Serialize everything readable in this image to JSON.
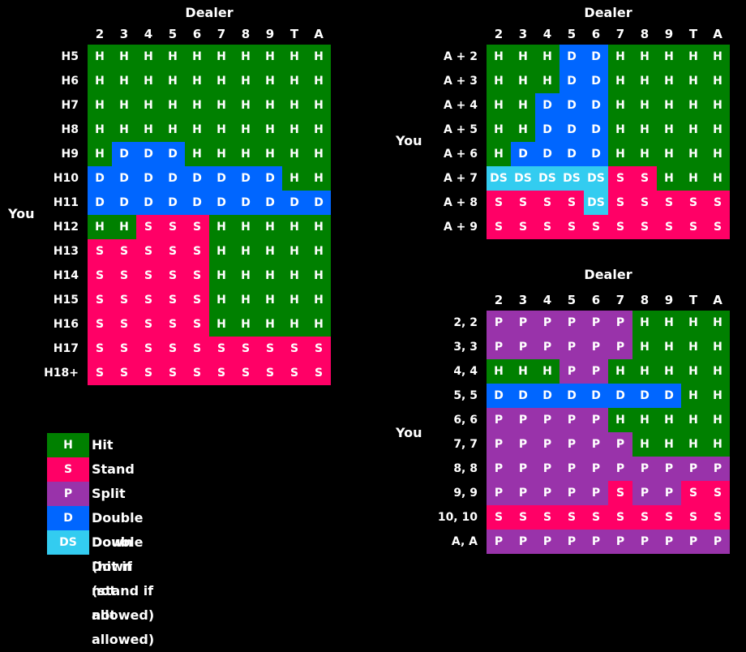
{
  "colors": {
    "H": "#008000",
    "S": "#ff0066",
    "P": "#9933aa",
    "D": "#0066ff",
    "DS": "#33ccf0"
  },
  "dealer_cards": [
    "2",
    "3",
    "4",
    "5",
    "6",
    "7",
    "8",
    "9",
    "T",
    "A"
  ],
  "charts": [
    {
      "id": "hard",
      "dealer_label": "Dealer",
      "you_label": "You",
      "rows": [
        {
          "label": "H5",
          "cells": [
            "H",
            "H",
            "H",
            "H",
            "H",
            "H",
            "H",
            "H",
            "H",
            "H"
          ]
        },
        {
          "label": "H6",
          "cells": [
            "H",
            "H",
            "H",
            "H",
            "H",
            "H",
            "H",
            "H",
            "H",
            "H"
          ]
        },
        {
          "label": "H7",
          "cells": [
            "H",
            "H",
            "H",
            "H",
            "H",
            "H",
            "H",
            "H",
            "H",
            "H"
          ]
        },
        {
          "label": "H8",
          "cells": [
            "H",
            "H",
            "H",
            "H",
            "H",
            "H",
            "H",
            "H",
            "H",
            "H"
          ]
        },
        {
          "label": "H9",
          "cells": [
            "H",
            "D",
            "D",
            "D",
            "H",
            "H",
            "H",
            "H",
            "H",
            "H"
          ]
        },
        {
          "label": "H10",
          "cells": [
            "D",
            "D",
            "D",
            "D",
            "D",
            "D",
            "D",
            "D",
            "H",
            "H"
          ]
        },
        {
          "label": "H11",
          "cells": [
            "D",
            "D",
            "D",
            "D",
            "D",
            "D",
            "D",
            "D",
            "D",
            "D"
          ]
        },
        {
          "label": "H12",
          "cells": [
            "H",
            "H",
            "S",
            "S",
            "S",
            "H",
            "H",
            "H",
            "H",
            "H"
          ]
        },
        {
          "label": "H13",
          "cells": [
            "S",
            "S",
            "S",
            "S",
            "S",
            "H",
            "H",
            "H",
            "H",
            "H"
          ]
        },
        {
          "label": "H14",
          "cells": [
            "S",
            "S",
            "S",
            "S",
            "S",
            "H",
            "H",
            "H",
            "H",
            "H"
          ]
        },
        {
          "label": "H15",
          "cells": [
            "S",
            "S",
            "S",
            "S",
            "S",
            "H",
            "H",
            "H",
            "H",
            "H"
          ]
        },
        {
          "label": "H16",
          "cells": [
            "S",
            "S",
            "S",
            "S",
            "S",
            "H",
            "H",
            "H",
            "H",
            "H"
          ]
        },
        {
          "label": "H17",
          "cells": [
            "S",
            "S",
            "S",
            "S",
            "S",
            "S",
            "S",
            "S",
            "S",
            "S"
          ]
        },
        {
          "label": "H18+",
          "cells": [
            "S",
            "S",
            "S",
            "S",
            "S",
            "S",
            "S",
            "S",
            "S",
            "S"
          ]
        }
      ]
    },
    {
      "id": "soft",
      "dealer_label": "Dealer",
      "you_label": "You",
      "rows": [
        {
          "label": "A + 2",
          "cells": [
            "H",
            "H",
            "H",
            "D",
            "D",
            "H",
            "H",
            "H",
            "H",
            "H"
          ]
        },
        {
          "label": "A + 3",
          "cells": [
            "H",
            "H",
            "H",
            "D",
            "D",
            "H",
            "H",
            "H",
            "H",
            "H"
          ]
        },
        {
          "label": "A + 4",
          "cells": [
            "H",
            "H",
            "D",
            "D",
            "D",
            "H",
            "H",
            "H",
            "H",
            "H"
          ]
        },
        {
          "label": "A + 5",
          "cells": [
            "H",
            "H",
            "D",
            "D",
            "D",
            "H",
            "H",
            "H",
            "H",
            "H"
          ]
        },
        {
          "label": "A + 6",
          "cells": [
            "H",
            "D",
            "D",
            "D",
            "D",
            "H",
            "H",
            "H",
            "H",
            "H"
          ]
        },
        {
          "label": "A + 7",
          "cells": [
            "DS",
            "DS",
            "DS",
            "DS",
            "DS",
            "S",
            "S",
            "H",
            "H",
            "H"
          ]
        },
        {
          "label": "A + 8",
          "cells": [
            "S",
            "S",
            "S",
            "S",
            "DS",
            "S",
            "S",
            "S",
            "S",
            "S"
          ]
        },
        {
          "label": "A + 9",
          "cells": [
            "S",
            "S",
            "S",
            "S",
            "S",
            "S",
            "S",
            "S",
            "S",
            "S"
          ]
        }
      ]
    },
    {
      "id": "pairs",
      "dealer_label": "Dealer",
      "you_label": "You",
      "rows": [
        {
          "label": "2, 2",
          "cells": [
            "P",
            "P",
            "P",
            "P",
            "P",
            "P",
            "H",
            "H",
            "H",
            "H"
          ]
        },
        {
          "label": "3, 3",
          "cells": [
            "P",
            "P",
            "P",
            "P",
            "P",
            "P",
            "H",
            "H",
            "H",
            "H"
          ]
        },
        {
          "label": "4, 4",
          "cells": [
            "H",
            "H",
            "H",
            "P",
            "P",
            "H",
            "H",
            "H",
            "H",
            "H"
          ]
        },
        {
          "label": "5, 5",
          "cells": [
            "D",
            "D",
            "D",
            "D",
            "D",
            "D",
            "D",
            "D",
            "H",
            "H"
          ]
        },
        {
          "label": "6, 6",
          "cells": [
            "P",
            "P",
            "P",
            "P",
            "P",
            "H",
            "H",
            "H",
            "H",
            "H"
          ]
        },
        {
          "label": "7, 7",
          "cells": [
            "P",
            "P",
            "P",
            "P",
            "P",
            "P",
            "H",
            "H",
            "H",
            "H"
          ]
        },
        {
          "label": "8, 8",
          "cells": [
            "P",
            "P",
            "P",
            "P",
            "P",
            "P",
            "P",
            "P",
            "P",
            "P"
          ]
        },
        {
          "label": "9, 9",
          "cells": [
            "P",
            "P",
            "P",
            "P",
            "P",
            "S",
            "P",
            "P",
            "S",
            "S"
          ]
        },
        {
          "label": "10, 10",
          "cells": [
            "S",
            "S",
            "S",
            "S",
            "S",
            "S",
            "S",
            "S",
            "S",
            "S"
          ]
        },
        {
          "label": "A, A",
          "cells": [
            "P",
            "P",
            "P",
            "P",
            "P",
            "P",
            "P",
            "P",
            "P",
            "P"
          ]
        }
      ]
    }
  ],
  "legend": [
    {
      "code": "H",
      "text": "Hit"
    },
    {
      "code": "S",
      "text": "Stand"
    },
    {
      "code": "P",
      "text": "Split"
    },
    {
      "code": "D",
      "text": "Double Down (hit if not allowed)"
    },
    {
      "code": "DS",
      "text": "Double Down (stand if not allowed)"
    }
  ]
}
